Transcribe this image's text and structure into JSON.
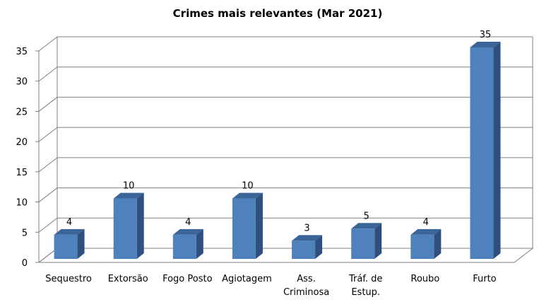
{
  "chart_data": {
    "type": "bar",
    "title": "Crimes mais relevantes (Mar 2021)",
    "xlabel": "",
    "ylabel": "",
    "categories": [
      [
        "Sequestro"
      ],
      [
        "Extorsão"
      ],
      [
        "Fogo Posto"
      ],
      [
        "Agiotagem"
      ],
      [
        "Ass.",
        "Criminosa"
      ],
      [
        "Tráf. de",
        "Estup."
      ],
      [
        "Roubo"
      ],
      [
        "Furto"
      ]
    ],
    "values": [
      4,
      10,
      4,
      10,
      3,
      5,
      4,
      35
    ],
    "data_labels": [
      "4",
      "10",
      "4",
      "10",
      "3",
      "5",
      "4",
      "35"
    ],
    "yticks": [
      "0",
      "5",
      "10",
      "15",
      "20",
      "25",
      "30",
      "35"
    ],
    "ytick_values": [
      0,
      5,
      10,
      15,
      20,
      25,
      30,
      35
    ],
    "ylim": [
      0,
      35
    ],
    "grid": true,
    "legend": "none",
    "style": "3d-column",
    "colors": {
      "bar_front": "#4F81BD",
      "bar_side": "#2F4F7F",
      "bar_top": "#3B6499",
      "grid": "#808080",
      "text": "#000000"
    }
  }
}
